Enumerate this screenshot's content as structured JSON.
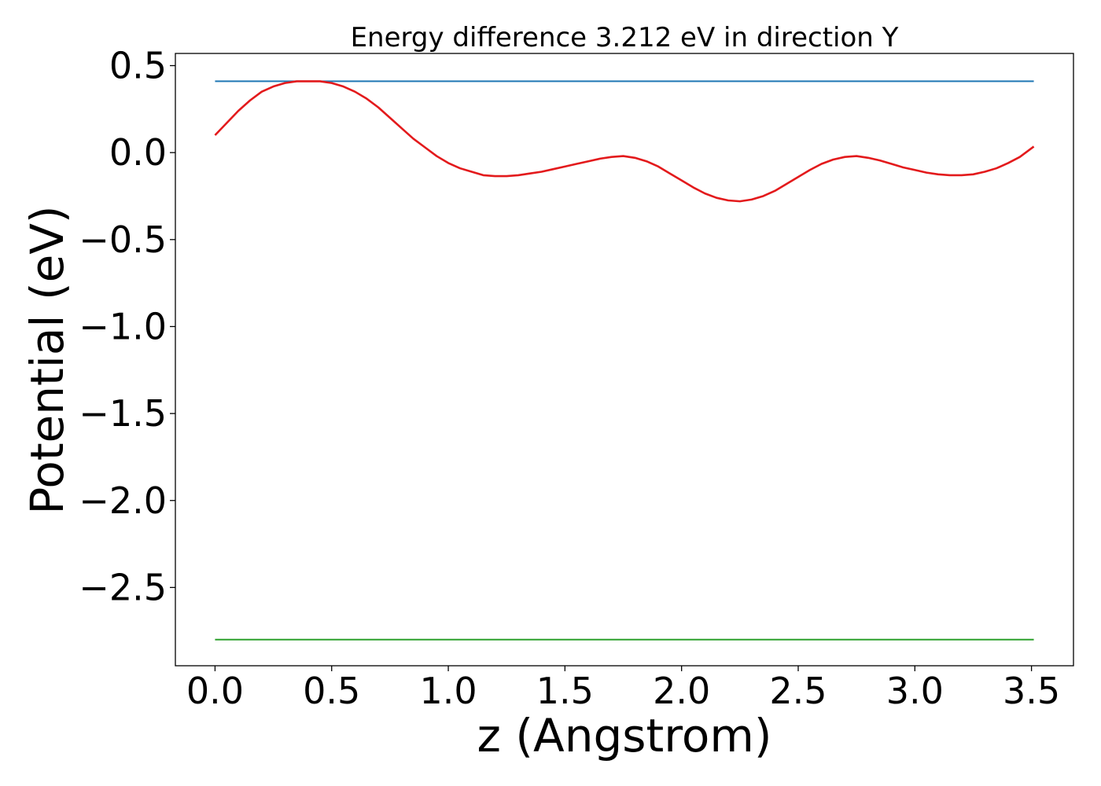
{
  "chart_data": {
    "type": "line",
    "title": "Energy difference 3.212 eV in direction Y",
    "xlabel": "z (Angstrom)",
    "ylabel": "Potential (eV)",
    "xlim": [
      -0.17,
      3.68
    ],
    "ylim": [
      -2.95,
      0.57
    ],
    "x_ticks": [
      0.0,
      0.5,
      1.0,
      1.5,
      2.0,
      2.5,
      3.0,
      3.5
    ],
    "x_tick_labels": [
      "0.0",
      "0.5",
      "1.0",
      "1.5",
      "2.0",
      "2.5",
      "3.0",
      "3.5"
    ],
    "y_ticks": [
      0.5,
      0.0,
      -0.5,
      -1.0,
      -1.5,
      -2.0,
      -2.5
    ],
    "y_tick_labels": [
      "0.5",
      "0.0",
      "−0.5",
      "−1.0",
      "−1.5",
      "−2.0",
      "−2.5"
    ],
    "grid": false,
    "legend": false,
    "series": [
      {
        "color": "#1f77b4",
        "x": [
          0.0,
          3.51
        ],
        "y": [
          0.41,
          0.41
        ]
      },
      {
        "color": "#2ca02c",
        "x": [
          0.0,
          3.51
        ],
        "y": [
          -2.8,
          -2.8
        ]
      },
      {
        "color": "#e31a1c",
        "x": [
          0.0,
          0.05,
          0.1,
          0.15,
          0.2,
          0.25,
          0.3,
          0.35,
          0.4,
          0.45,
          0.5,
          0.55,
          0.6,
          0.65,
          0.7,
          0.75,
          0.8,
          0.85,
          0.9,
          0.95,
          1.0,
          1.05,
          1.1,
          1.15,
          1.2,
          1.25,
          1.3,
          1.35,
          1.4,
          1.45,
          1.5,
          1.55,
          1.6,
          1.65,
          1.7,
          1.75,
          1.8,
          1.85,
          1.9,
          1.95,
          2.0,
          2.05,
          2.1,
          2.15,
          2.2,
          2.25,
          2.3,
          2.35,
          2.4,
          2.45,
          2.5,
          2.55,
          2.6,
          2.65,
          2.7,
          2.75,
          2.8,
          2.85,
          2.9,
          2.95,
          3.0,
          3.05,
          3.1,
          3.15,
          3.2,
          3.25,
          3.3,
          3.35,
          3.4,
          3.45,
          3.51
        ],
        "y": [
          0.1,
          0.17,
          0.24,
          0.3,
          0.35,
          0.38,
          0.4,
          0.41,
          0.41,
          0.41,
          0.4,
          0.38,
          0.35,
          0.31,
          0.26,
          0.2,
          0.14,
          0.08,
          0.03,
          -0.02,
          -0.06,
          -0.09,
          -0.11,
          -0.13,
          -0.135,
          -0.135,
          -0.13,
          -0.12,
          -0.11,
          -0.095,
          -0.08,
          -0.065,
          -0.05,
          -0.035,
          -0.025,
          -0.02,
          -0.03,
          -0.05,
          -0.08,
          -0.12,
          -0.16,
          -0.2,
          -0.235,
          -0.26,
          -0.275,
          -0.28,
          -0.27,
          -0.25,
          -0.22,
          -0.18,
          -0.14,
          -0.1,
          -0.065,
          -0.04,
          -0.025,
          -0.02,
          -0.03,
          -0.045,
          -0.065,
          -0.085,
          -0.1,
          -0.115,
          -0.125,
          -0.13,
          -0.13,
          -0.125,
          -0.11,
          -0.09,
          -0.06,
          -0.025,
          0.035
        ]
      }
    ]
  }
}
